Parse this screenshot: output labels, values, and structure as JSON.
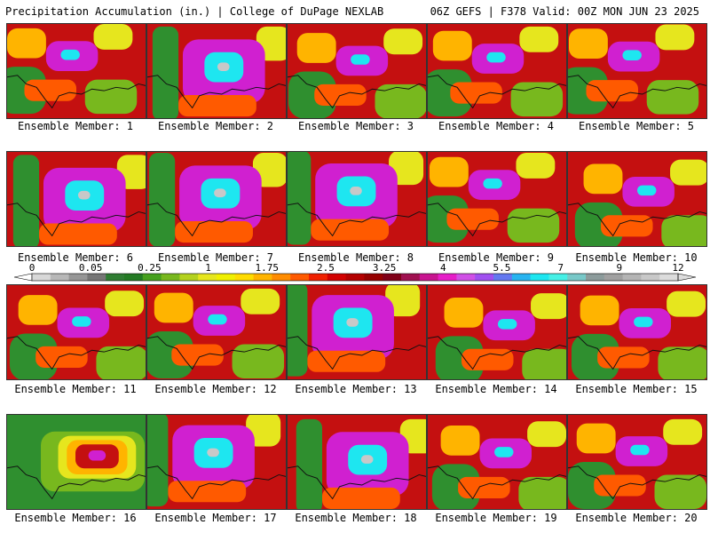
{
  "header": {
    "left": "Precipitation Accumulation (in.) | College of DuPage NEXLAB",
    "right": "06Z GEFS | F378 Valid: 00Z MON JUN 23 2025"
  },
  "members": [
    {
      "label": "Ensemble Member: 1",
      "regime": 1
    },
    {
      "label": "Ensemble Member: 2",
      "regime": 2
    },
    {
      "label": "Ensemble Member: 3",
      "regime": 1
    },
    {
      "label": "Ensemble Member: 4",
      "regime": 1
    },
    {
      "label": "Ensemble Member: 5",
      "regime": 1
    },
    {
      "label": "Ensemble Member: 6",
      "regime": 2
    },
    {
      "label": "Ensemble Member: 7",
      "regime": 2
    },
    {
      "label": "Ensemble Member: 8",
      "regime": 2
    },
    {
      "label": "Ensemble Member: 9",
      "regime": 1
    },
    {
      "label": "Ensemble Member: 10",
      "regime": 1
    },
    {
      "label": "Ensemble Member: 11",
      "regime": 1
    },
    {
      "label": "Ensemble Member: 12",
      "regime": 1
    },
    {
      "label": "Ensemble Member: 13",
      "regime": 2
    },
    {
      "label": "Ensemble Member: 14",
      "regime": 1
    },
    {
      "label": "Ensemble Member: 15",
      "regime": 1
    },
    {
      "label": "Ensemble Member: 16",
      "regime": 0
    },
    {
      "label": "Ensemble Member: 17",
      "regime": 2
    },
    {
      "label": "Ensemble Member: 18",
      "regime": 2
    },
    {
      "label": "Ensemble Member: 19",
      "regime": 1
    },
    {
      "label": "Ensemble Member: 20",
      "regime": 1
    }
  ],
  "colorbar": {
    "labels": [
      "0",
      "0.05",
      "0.25",
      "1",
      "1.75",
      "2.5",
      "3.25",
      "4",
      "5.5",
      "7",
      "9",
      "12"
    ],
    "colors": [
      "#d8d8d8",
      "#b8b8b8",
      "#969696",
      "#767676",
      "#2f7d32",
      "#237a23",
      "#46a01e",
      "#78b81e",
      "#b4d21e",
      "#e6e61e",
      "#f0f000",
      "#ffdc00",
      "#ffb400",
      "#ff8c00",
      "#ff5a00",
      "#f02000",
      "#d20000",
      "#b40000",
      "#960000",
      "#800018",
      "#a01050",
      "#c81490",
      "#e61ec8",
      "#d050e6",
      "#a050f0",
      "#6478f0",
      "#28b4f0",
      "#1ee6f0",
      "#46f0e6",
      "#78c8c8",
      "#8c9b9b",
      "#a0a0a0",
      "#b4b4b4",
      "#c8c8c8",
      "#dcdcdc"
    ]
  }
}
